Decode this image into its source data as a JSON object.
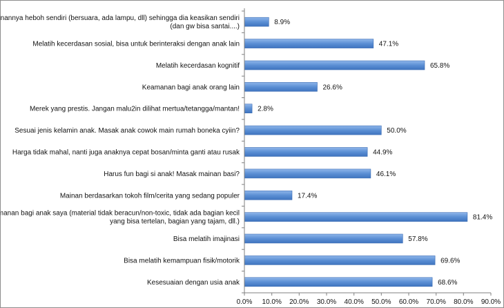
{
  "chart_data": {
    "type": "bar",
    "orientation": "horizontal",
    "categories": [
      [
        "Mainannya heboh sendiri (bersuara, ada lampu, dll) sehingga dia keasikan sendiri",
        "(dan gw bisa santai....)"
      ],
      [
        "Melatih kecerdasan sosial, bisa untuk berinteraksi dengan anak lain"
      ],
      [
        "Melatih kecerdasan kognitif"
      ],
      [
        "Keamanan bagi anak orang lain"
      ],
      [
        "Merek yang prestis. Jangan malu2in dilihat mertua/tetangga/mantan!"
      ],
      [
        "Sesuai jenis kelamin anak. Masak anak cowok main rumah boneka cyiin?"
      ],
      [
        "Harga tidak mahal, nanti juga anaknya cepat bosan/minta ganti atau rusak"
      ],
      [
        "Harus fun bagi si anak! Masak mainan basi?"
      ],
      [
        "Mainan berdasarkan tokoh film/cerita yang sedang populer"
      ],
      [
        "Keamanan bagi anak saya (material tidak beracun/non-toxic, tidak ada bagian kecil",
        "yang bisa tertelan, bagian yang tajam, dll.)"
      ],
      [
        "Bisa melatih imajinasi"
      ],
      [
        "Bisa melatih kemampuan fisik/motorik"
      ],
      [
        "Kesesuaian dengan usia anak"
      ]
    ],
    "values": [
      8.9,
      47.1,
      65.8,
      26.6,
      2.8,
      50.0,
      44.9,
      46.1,
      17.4,
      81.4,
      57.8,
      69.6,
      68.6
    ],
    "value_labels": [
      "8.9%",
      "47.1%",
      "65.8%",
      "26.6%",
      "2.8%",
      "50.0%",
      "44.9%",
      "46.1%",
      "17.4%",
      "81.4%",
      "57.8%",
      "69.6%",
      "68.6%"
    ],
    "xticks": [
      "0.0%",
      "10.0%",
      "20.0%",
      "30.0%",
      "40.0%",
      "50.0%",
      "60.0%",
      "70.0%",
      "80.0%",
      "90.0%"
    ],
    "xlim": [
      0,
      90
    ],
    "grid": false,
    "bar_color": "#5b8fd4",
    "bar_edge_color": "#3b6cb3"
  }
}
